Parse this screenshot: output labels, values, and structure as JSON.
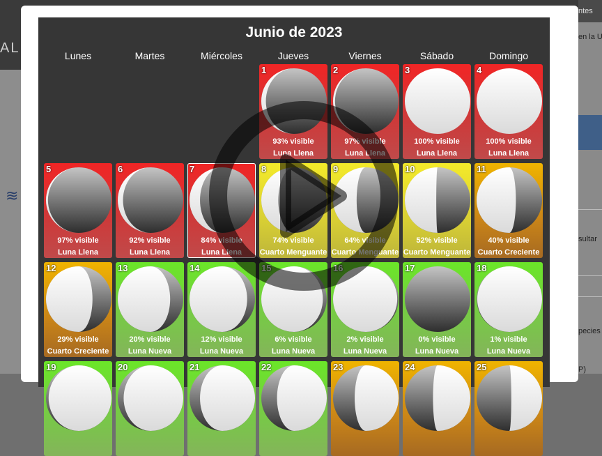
{
  "background": {
    "logo_text": "AL",
    "right_texts": [
      "ntes",
      "en la U",
      "sultar",
      "pecies",
      "P)"
    ]
  },
  "calendar": {
    "title": "Junio de 2023",
    "weekdays": [
      "Lunes",
      "Martes",
      "Miércoles",
      "Jueves",
      "Viernes",
      "Sábado",
      "Domingo"
    ],
    "days": [
      {
        "num": "1",
        "visible": "93% visible",
        "phase": "Luna Llena",
        "tone": "red",
        "fraction": 0.93,
        "waxing": false
      },
      {
        "num": "2",
        "visible": "97% visible",
        "phase": "Luna Llena",
        "tone": "red",
        "fraction": 0.97,
        "waxing": false
      },
      {
        "num": "3",
        "visible": "100% visible",
        "phase": "Luna Llena",
        "tone": "red",
        "fraction": 1.0,
        "waxing": false
      },
      {
        "num": "4",
        "visible": "100% visible",
        "phase": "Luna Llena",
        "tone": "red",
        "fraction": 1.0,
        "waxing": false
      },
      {
        "num": "5",
        "visible": "97% visible",
        "phase": "Luna Llena",
        "tone": "red",
        "fraction": 0.97,
        "waxing": false
      },
      {
        "num": "6",
        "visible": "92% visible",
        "phase": "Luna Llena",
        "tone": "red",
        "fraction": 0.92,
        "waxing": false
      },
      {
        "num": "7",
        "visible": "84% visible",
        "phase": "Luna Llena",
        "tone": "red",
        "fraction": 0.84,
        "waxing": false,
        "selected": true
      },
      {
        "num": "8",
        "visible": "74% visible",
        "phase": "Cuarto Menguante",
        "tone": "yellow",
        "fraction": 0.74,
        "waxing": false
      },
      {
        "num": "9",
        "visible": "64% visible",
        "phase": "Cuarto Menguante",
        "tone": "yellow",
        "fraction": 0.64,
        "waxing": false
      },
      {
        "num": "10",
        "visible": "52% visible",
        "phase": "Cuarto Menguante",
        "tone": "yellow",
        "fraction": 0.52,
        "waxing": false
      },
      {
        "num": "11",
        "visible": "40% visible",
        "phase": "Cuarto Creciente",
        "tone": "orange",
        "fraction": 0.4,
        "waxing": false
      },
      {
        "num": "12",
        "visible": "29% visible",
        "phase": "Cuarto Creciente",
        "tone": "orange",
        "fraction": 0.29,
        "waxing": false
      },
      {
        "num": "13",
        "visible": "20% visible",
        "phase": "Luna Nueva",
        "tone": "green",
        "fraction": 0.2,
        "waxing": false
      },
      {
        "num": "14",
        "visible": "12% visible",
        "phase": "Luna Nueva",
        "tone": "green",
        "fraction": 0.12,
        "waxing": false
      },
      {
        "num": "15",
        "visible": "6% visible",
        "phase": "Luna Nueva",
        "tone": "green",
        "fraction": 0.06,
        "waxing": false
      },
      {
        "num": "16",
        "visible": "2% visible",
        "phase": "Luna Nueva",
        "tone": "green",
        "fraction": 0.02,
        "waxing": false
      },
      {
        "num": "17",
        "visible": "0% visible",
        "phase": "Luna Nueva",
        "tone": "green",
        "fraction": 0.0,
        "waxing": false
      },
      {
        "num": "18",
        "visible": "1% visible",
        "phase": "Luna Nueva",
        "tone": "green",
        "fraction": 0.01,
        "waxing": true
      },
      {
        "num": "19",
        "visible": "",
        "phase": "",
        "tone": "green",
        "fraction": 0.04,
        "waxing": true
      },
      {
        "num": "20",
        "visible": "",
        "phase": "",
        "tone": "green",
        "fraction": 0.09,
        "waxing": true
      },
      {
        "num": "21",
        "visible": "",
        "phase": "",
        "tone": "green",
        "fraction": 0.16,
        "waxing": true
      },
      {
        "num": "22",
        "visible": "",
        "phase": "",
        "tone": "green",
        "fraction": 0.24,
        "waxing": true
      },
      {
        "num": "23",
        "visible": "",
        "phase": "",
        "tone": "orange",
        "fraction": 0.33,
        "waxing": true
      },
      {
        "num": "24",
        "visible": "",
        "phase": "",
        "tone": "orange",
        "fraction": 0.43,
        "waxing": true
      },
      {
        "num": "25",
        "visible": "",
        "phase": "",
        "tone": "orange",
        "fraction": 0.53,
        "waxing": true
      }
    ]
  },
  "overlay": {
    "icon": "play-icon"
  },
  "colors": {
    "red": "#e23232",
    "yellow": "#e6dc30",
    "orange": "#df9a10",
    "green": "#72d83a"
  }
}
